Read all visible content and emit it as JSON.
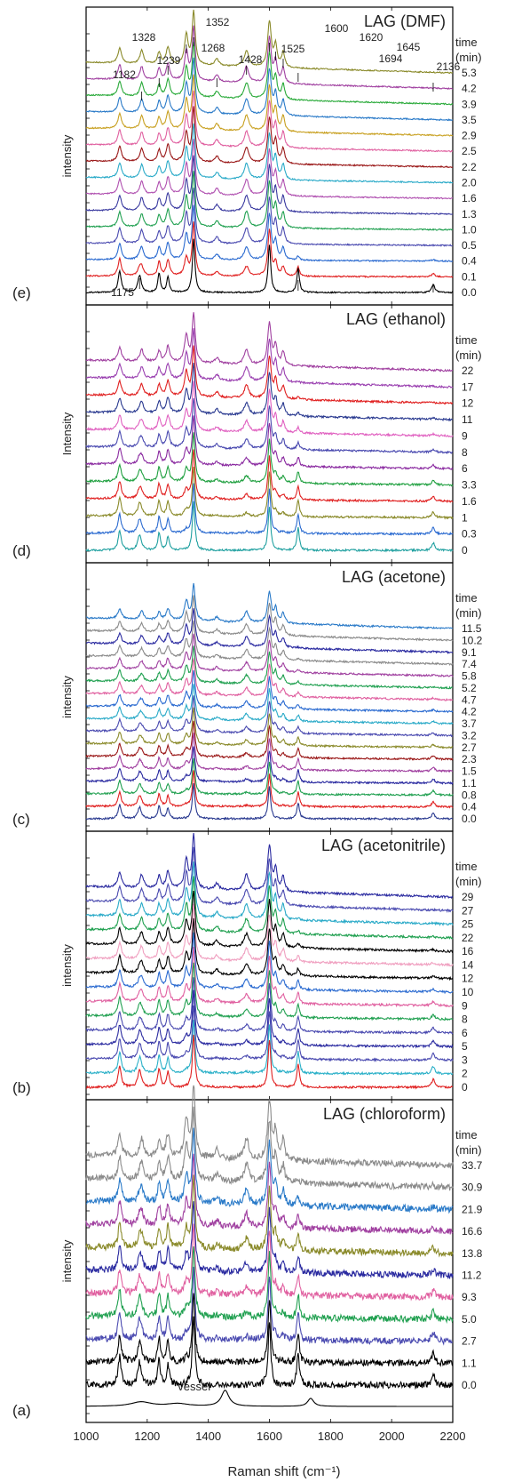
{
  "figure": {
    "xlabel": "Raman shift (cm⁻¹)",
    "x_ticks": [
      "1000",
      "1200",
      "1400",
      "1600",
      "1800",
      "2000",
      "2200"
    ],
    "time_header_1": "time",
    "time_header_2": "(min)"
  },
  "chart_data": [
    {
      "type": "line",
      "panel_label": "(e)",
      "title": "LAG (DMF)",
      "ylabel": "intensity",
      "xlim": [
        1000,
        2200
      ],
      "x_ticks": [
        1000,
        1200,
        1400,
        1600,
        1800,
        2000,
        2200
      ],
      "time_unit_header": true,
      "series": [
        {
          "name": "5.3",
          "color": "#8a8a2a"
        },
        {
          "name": "4.2",
          "color": "#a040a0"
        },
        {
          "name": "3.9",
          "color": "#2aaa3a"
        },
        {
          "name": "3.5",
          "color": "#2a7ac8"
        },
        {
          "name": "2.9",
          "color": "#c8a020"
        },
        {
          "name": "2.5",
          "color": "#e060a0"
        },
        {
          "name": "2.2",
          "color": "#9a1818"
        },
        {
          "name": "2.0",
          "color": "#2aaac8"
        },
        {
          "name": "1.6",
          "color": "#b050b0"
        },
        {
          "name": "1.3",
          "color": "#3a3aa0"
        },
        {
          "name": "1.0",
          "color": "#20a050"
        },
        {
          "name": "0.5",
          "color": "#4a4ab0"
        },
        {
          "name": "0.4",
          "color": "#2a6ad0"
        },
        {
          "name": "0.1",
          "color": "#e02020"
        },
        {
          "name": "0.0",
          "color": "#000000"
        }
      ],
      "peaks": [
        1110,
        1182,
        1239,
        1268,
        1328,
        1352,
        1428,
        1525,
        1600,
        1620,
        1645
      ],
      "reactant_peaks": [
        1175,
        1694,
        2136
      ],
      "annotations": [
        "1182",
        "1239",
        "1268",
        "1328",
        "1352",
        "1428",
        "1525",
        "1600",
        "1620",
        "1645",
        "1694",
        "2136",
        "1175"
      ]
    },
    {
      "type": "line",
      "panel_label": "(d)",
      "title": "LAG (ethanol)",
      "ylabel": "Intensity",
      "xlim": [
        1000,
        2200
      ],
      "time_unit_header": true,
      "series": [
        {
          "name": "22",
          "color": "#a040a0"
        },
        {
          "name": "17",
          "color": "#9a40b0"
        },
        {
          "name": "12",
          "color": "#e02020"
        },
        {
          "name": "11",
          "color": "#2a3a90"
        },
        {
          "name": "9",
          "color": "#e060c0"
        },
        {
          "name": "8",
          "color": "#4a4ab0"
        },
        {
          "name": "6",
          "color": "#8a2aa0"
        },
        {
          "name": "3.3",
          "color": "#20a040"
        },
        {
          "name": "1.6",
          "color": "#e02020"
        },
        {
          "name": "1",
          "color": "#8a8a2a"
        },
        {
          "name": "0.3",
          "color": "#2a6ad0"
        },
        {
          "name": "0",
          "color": "#20a0a0"
        }
      ]
    },
    {
      "type": "line",
      "panel_label": "(c)",
      "title": "LAG (acetone)",
      "ylabel": "intensity",
      "xlim": [
        1000,
        2200
      ],
      "time_unit_header": true,
      "series": [
        {
          "name": "11.5",
          "color": "#2a7ac8"
        },
        {
          "name": "10.2",
          "color": "#8a8a8a"
        },
        {
          "name": "9.1",
          "color": "#2a2aa0"
        },
        {
          "name": "7.4",
          "color": "#8a8a8a"
        },
        {
          "name": "5.8",
          "color": "#a040a0"
        },
        {
          "name": "5.2",
          "color": "#20a050"
        },
        {
          "name": "4.7",
          "color": "#e060a0"
        },
        {
          "name": "4.2",
          "color": "#2a6ad0"
        },
        {
          "name": "3.7",
          "color": "#2aaac8"
        },
        {
          "name": "3.2",
          "color": "#4a4ab0"
        },
        {
          "name": "2.7",
          "color": "#8a8a2a"
        },
        {
          "name": "2.3",
          "color": "#9a1818"
        },
        {
          "name": "1.5",
          "color": "#a040a0"
        },
        {
          "name": "1.1",
          "color": "#2a2aa0"
        },
        {
          "name": "0.8",
          "color": "#20a050"
        },
        {
          "name": "0.4",
          "color": "#e02020"
        },
        {
          "name": "0.0",
          "color": "#2a3a90"
        }
      ]
    },
    {
      "type": "line",
      "panel_label": "(b)",
      "title": "LAG (acetonitrile)",
      "ylabel": "intensity",
      "xlim": [
        1000,
        2200
      ],
      "time_unit_header": true,
      "series": [
        {
          "name": "29",
          "color": "#2a2aa0"
        },
        {
          "name": "27",
          "color": "#4a4ab0"
        },
        {
          "name": "25",
          "color": "#2aaac8"
        },
        {
          "name": "22",
          "color": "#20a050"
        },
        {
          "name": "16",
          "color": "#000000"
        },
        {
          "name": "14",
          "color": "#f0a0c0"
        },
        {
          "name": "12",
          "color": "#000000"
        },
        {
          "name": "10",
          "color": "#2a6ad0"
        },
        {
          "name": "9",
          "color": "#e060a0"
        },
        {
          "name": "8",
          "color": "#20a050"
        },
        {
          "name": "6",
          "color": "#4a4ab0"
        },
        {
          "name": "5",
          "color": "#2a2aa0"
        },
        {
          "name": "3",
          "color": "#4a4ab0"
        },
        {
          "name": "2",
          "color": "#2ab0c8"
        },
        {
          "name": "0",
          "color": "#e02020"
        }
      ]
    },
    {
      "type": "line",
      "panel_label": "(a)",
      "title": "LAG (chloroform)",
      "ylabel": "intensity",
      "xlim": [
        1000,
        2200
      ],
      "xlabel": "Raman shift (cm⁻¹)",
      "time_unit_header": true,
      "series": [
        {
          "name": "33.7",
          "color": "#8a8a8a"
        },
        {
          "name": "30.9",
          "color": "#8a8a8a"
        },
        {
          "name": "21.9",
          "color": "#2a7ac8"
        },
        {
          "name": "16.6",
          "color": "#a040a0"
        },
        {
          "name": "13.8",
          "color": "#8a8a2a"
        },
        {
          "name": "11.2",
          "color": "#2a2aa0"
        },
        {
          "name": "9.3",
          "color": "#e060a0"
        },
        {
          "name": "5.0",
          "color": "#20a050"
        },
        {
          "name": "2.7",
          "color": "#4a4ab0"
        },
        {
          "name": "1.1",
          "color": "#000000"
        },
        {
          "name": "0.0",
          "color": "#000000"
        }
      ],
      "vessel_label": "vessel"
    }
  ]
}
